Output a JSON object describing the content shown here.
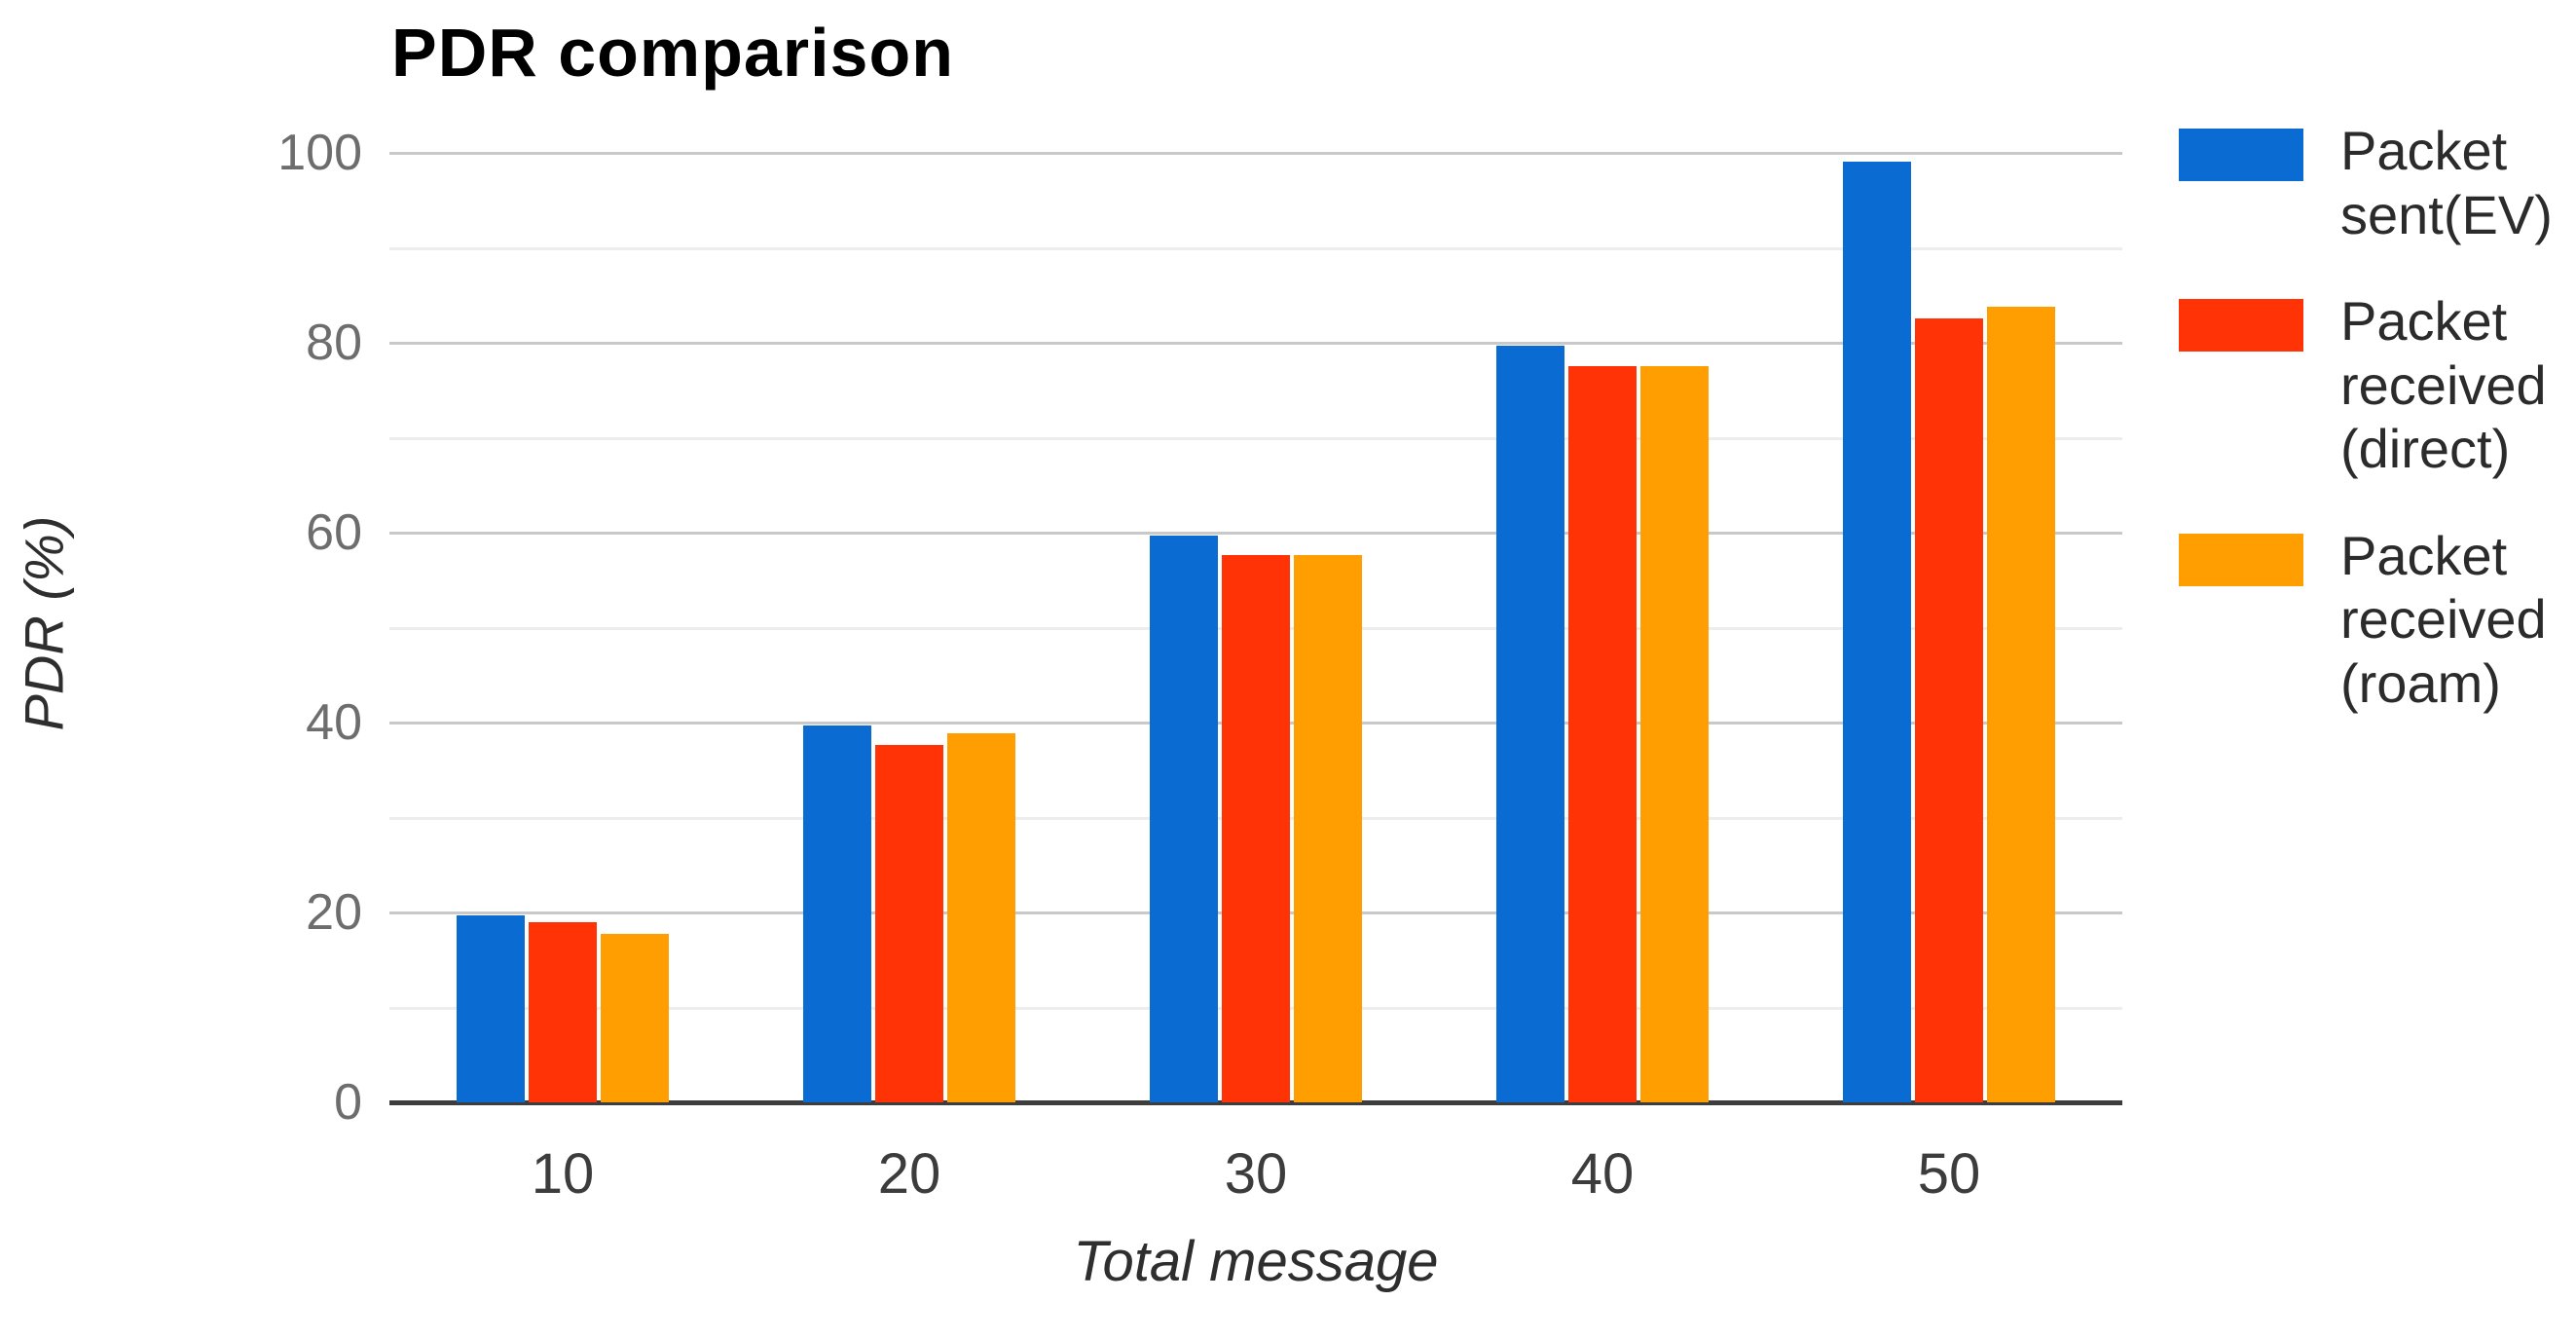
{
  "title": "PDR comparison",
  "chart_data": {
    "type": "bar",
    "title": "PDR comparison",
    "xlabel": "Total message",
    "ylabel": "PDR (%)",
    "categories": [
      "10",
      "20",
      "30",
      "40",
      "50"
    ],
    "series": [
      {
        "name": "Packet sent(EV)",
        "color": "#0a6bd2",
        "values": [
          19.7,
          39.7,
          59.7,
          79.7,
          99.1
        ]
      },
      {
        "name": "Packet received (direct)",
        "color": "#ff3306",
        "values": [
          19.0,
          37.6,
          57.6,
          77.5,
          82.6
        ]
      },
      {
        "name": "Packet received (roam)",
        "color": "#ff9e00",
        "values": [
          17.7,
          38.9,
          57.6,
          77.5,
          83.8
        ]
      }
    ],
    "ylim": [
      0,
      100
    ],
    "yticks_labeled": [
      0,
      20,
      40,
      60,
      80,
      100
    ],
    "gridline_step": 10,
    "grid": true,
    "legend_position": "right"
  },
  "colors": {
    "background": "#ffffff",
    "major_gridline": "#c9c9c9",
    "minor_gridline": "#ededed",
    "axis_line": "#3d3d3d",
    "ytick_text": "#6d6d6d",
    "xtick_text": "#3c3c3c",
    "title_text": "#000000"
  }
}
